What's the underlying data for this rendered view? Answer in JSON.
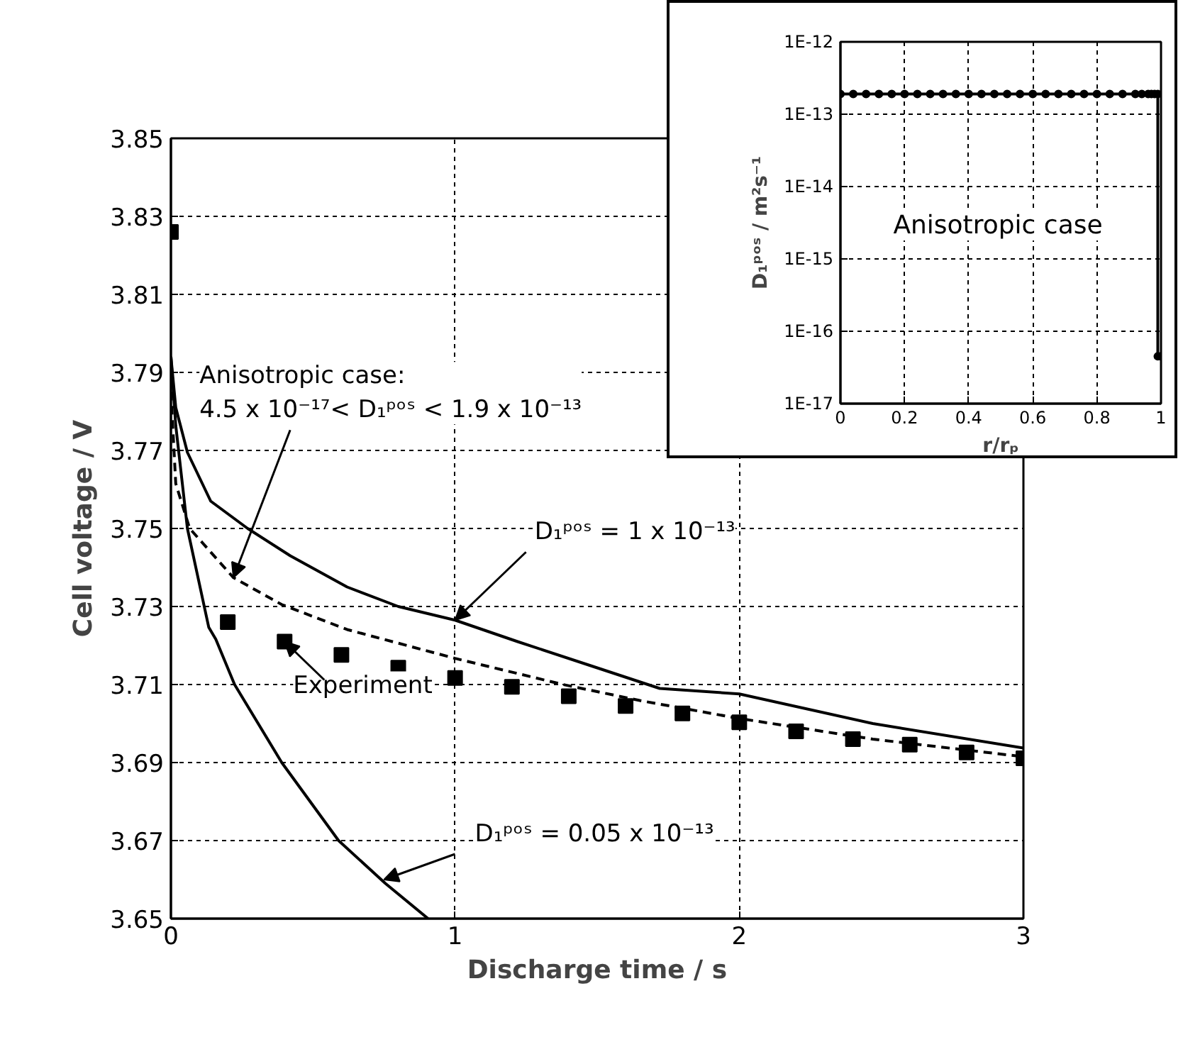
{
  "chart_data": [
    {
      "type": "line",
      "xlabel": "Discharge time / s",
      "ylabel": "Cell voltage / V",
      "xlim": [
        0,
        3
      ],
      "ylim": [
        3.65,
        3.85
      ],
      "xticks": [
        0,
        1,
        2,
        3
      ],
      "yticks": [
        3.65,
        3.67,
        3.69,
        3.71,
        3.73,
        3.75,
        3.77,
        3.79,
        3.81,
        3.83,
        3.85
      ],
      "grid": true,
      "series": [
        {
          "color": "#000000",
          "line_style": "solid",
          "x": [
            0,
            0.017,
            0.058,
            0.14,
            0.27,
            0.42,
            0.62,
            0.8,
            1.0,
            1.22,
            1.47,
            1.72,
            2.0,
            2.47,
            3.0
          ],
          "values": [
            3.794,
            3.781,
            3.7695,
            3.757,
            3.75,
            3.743,
            3.735,
            3.73,
            3.7265,
            3.721,
            3.715,
            3.709,
            3.7076,
            3.7,
            3.6937
          ]
        },
        {
          "color": "#000000",
          "line_style": "dashed",
          "x": [
            0,
            0.017,
            0.066,
            0.22,
            0.39,
            0.62,
            1.0,
            1.38,
            1.65,
            2.0,
            2.47,
            3.0
          ],
          "values": [
            3.785,
            3.7615,
            3.75,
            3.7374,
            3.7305,
            3.7241,
            3.7167,
            3.71,
            3.7059,
            3.7013,
            3.696,
            3.6915
          ]
        },
        {
          "color": "#000000",
          "line_style": "solid",
          "x": [
            0,
            0.017,
            0.058,
            0.133,
            0.158,
            0.224,
            0.39,
            0.59,
            0.755,
            0.905
          ],
          "values": [
            3.794,
            3.7764,
            3.75,
            3.7247,
            3.7216,
            3.71,
            3.69,
            3.67,
            3.659,
            3.65
          ]
        },
        {
          "type": "scatter",
          "marker": "square",
          "color": "#000000",
          "x": [
            0,
            0.2,
            0.4,
            0.6,
            0.8,
            1.0,
            1.2,
            1.4,
            1.6,
            1.8,
            2.0,
            2.2,
            2.4,
            2.6,
            2.8,
            3.0
          ],
          "values": [
            3.826,
            3.726,
            3.721,
            3.7176,
            3.7143,
            3.7117,
            3.7094,
            3.707,
            3.7045,
            3.7026,
            3.7003,
            3.698,
            3.696,
            3.6946,
            3.6926,
            3.6911
          ]
        }
      ],
      "annotations": [
        {
          "text": "Anisotropic case:\n4.5 x 10⁻¹⁷< D₁ᵖᵒˢ < 1.9 x 10⁻¹³",
          "x": 0.22,
          "y": 3.7374
        },
        {
          "text": "D₁ᵖᵒˢ = 1 x 10⁻¹³",
          "x": 1.0,
          "y": 3.7265
        },
        {
          "text": "Experiment",
          "x": 0.4,
          "y": 3.721
        },
        {
          "text": "D₁ᵖᵒˢ = 0.05 x 10⁻¹³",
          "x": 0.75,
          "y": 3.66
        }
      ]
    },
    {
      "type": "line",
      "marker": "circle",
      "log": "y",
      "xlabel": "r/rₚ",
      "ylabel": "D₁ᵖᵒˢ / m²s⁻¹",
      "xlim": [
        0,
        1
      ],
      "ylim": [
        1e-17,
        1e-12
      ],
      "xticks": [
        0,
        0.2,
        0.4,
        0.6,
        0.8,
        1
      ],
      "yticks": [
        {
          "value": 1e-17,
          "label": "1E-17"
        },
        {
          "value": 1e-16,
          "label": "1E-16"
        },
        {
          "value": 1e-15,
          "label": "1E-15"
        },
        {
          "value": 1e-14,
          "label": "1E-14"
        },
        {
          "value": 1e-13,
          "label": "1E-13"
        },
        {
          "value": 1e-12,
          "label": "1E-12"
        }
      ],
      "grid": true,
      "series": [
        {
          "color": "#000000",
          "x": [
            0,
            0.04,
            0.08,
            0.12,
            0.16,
            0.2,
            0.24,
            0.28,
            0.32,
            0.36,
            0.4,
            0.44,
            0.48,
            0.52,
            0.56,
            0.6,
            0.64,
            0.68,
            0.72,
            0.76,
            0.8,
            0.84,
            0.88,
            0.92,
            0.94,
            0.96,
            0.97,
            0.98,
            0.99,
            0.99,
            1.0
          ],
          "values": [
            1.9e-13,
            1.9e-13,
            1.9e-13,
            1.9e-13,
            1.9e-13,
            1.9e-13,
            1.9e-13,
            1.9e-13,
            1.9e-13,
            1.9e-13,
            1.9e-13,
            1.9e-13,
            1.9e-13,
            1.9e-13,
            1.9e-13,
            1.9e-13,
            1.9e-13,
            1.9e-13,
            1.9e-13,
            1.9e-13,
            1.9e-13,
            1.9e-13,
            1.9e-13,
            1.9e-13,
            1.9e-13,
            1.9e-13,
            1.9e-13,
            1.9e-13,
            1.9e-13,
            4.5e-17,
            4.5e-17
          ]
        }
      ],
      "annotations": [
        "Anisotropic case"
      ]
    }
  ]
}
